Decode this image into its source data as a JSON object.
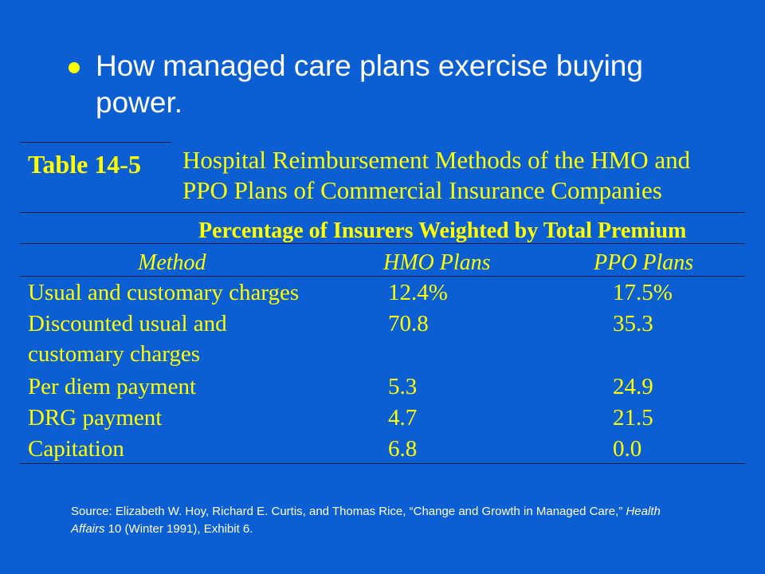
{
  "slide": {
    "bullet_text": "How managed care plans exercise buying power."
  },
  "table": {
    "label": "Table 14-5",
    "title": "Hospital Reimbursement Methods of the HMO and PPO Plans of Commercial Insurance Companies",
    "subheader": "Percentage of Insurers Weighted by Total Premium",
    "columns": [
      "Method",
      "HMO Plans",
      "PPO Plans"
    ],
    "rows": [
      {
        "method_line1": "Usual and customary charges",
        "method_line2": "",
        "hmo": "12.4%",
        "ppo": "17.5%"
      },
      {
        "method_line1": "Discounted usual and",
        "method_line2": "customary charges",
        "hmo": "70.8",
        "ppo": "35.3"
      },
      {
        "method_line1": "Per diem payment",
        "method_line2": "",
        "hmo": "5.3",
        "ppo": "24.9"
      },
      {
        "method_line1": "DRG payment",
        "method_line2": "",
        "hmo": "4.7",
        "ppo": "21.5"
      },
      {
        "method_line1": "Capitation",
        "method_line2": "",
        "hmo": "6.8",
        "ppo": "0.0"
      }
    ]
  },
  "source": {
    "prefix": "Source: Elizabeth W. Hoy, Richard E. Curtis, and Thomas Rice, “Change and Growth in Managed Care,” ",
    "journal": "Health Affairs",
    "suffix": " 10 (Winter 1991), Exhibit 6."
  }
}
